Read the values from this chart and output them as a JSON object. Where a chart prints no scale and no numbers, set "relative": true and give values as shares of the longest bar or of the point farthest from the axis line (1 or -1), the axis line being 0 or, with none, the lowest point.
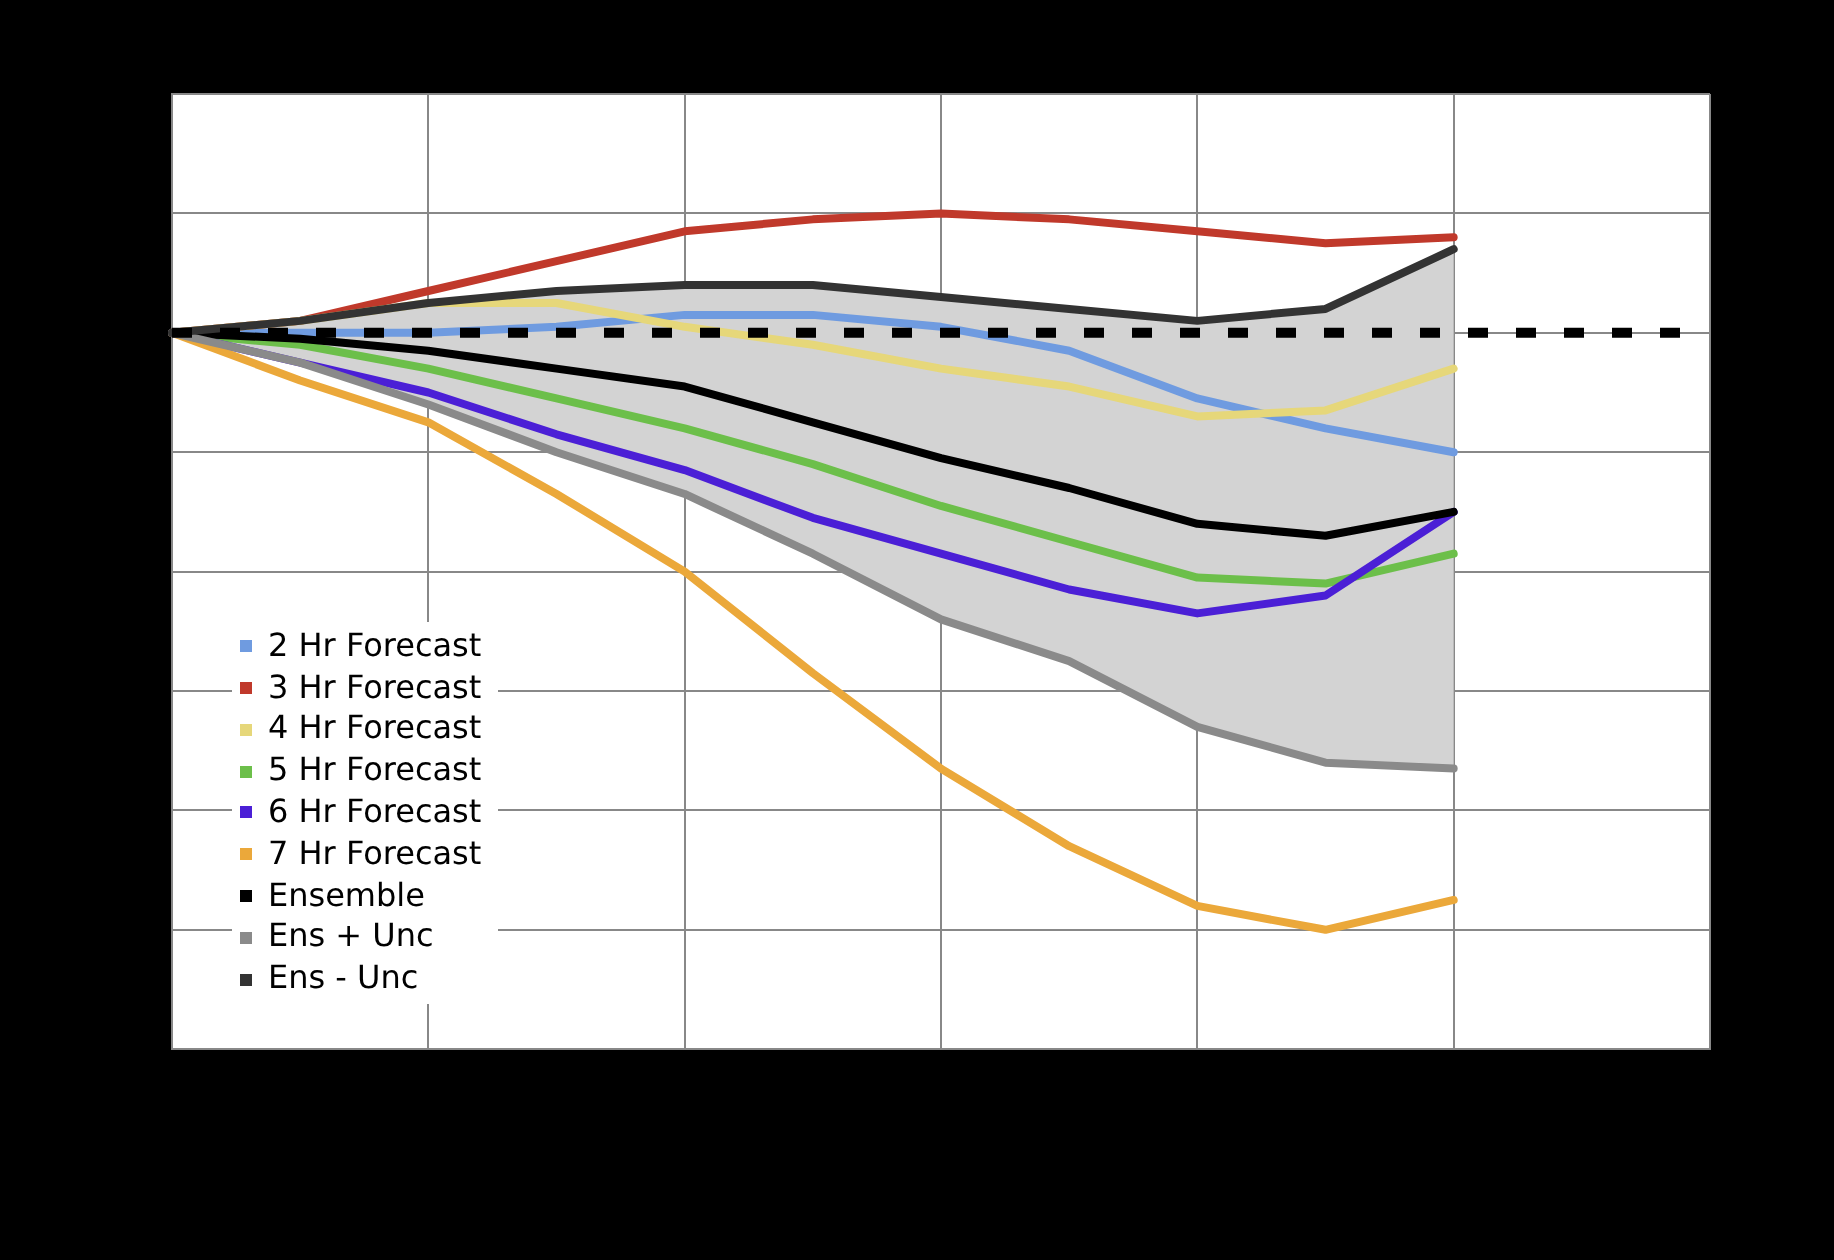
{
  "chart_data": {
    "type": "line",
    "relative": true,
    "categories": [
      null,
      null,
      null,
      null,
      null,
      null,
      null,
      null,
      null,
      null,
      null,
      null,
      null
    ],
    "series": [
      {
        "name": "2 Hr Forecast",
        "color": "#6f9be0",
        "values": [
          0,
          0,
          0,
          0.01,
          0.03,
          0.03,
          0.01,
          -0.03,
          -0.11,
          -0.16,
          -0.2,
          null,
          null
        ]
      },
      {
        "name": "3 Hr Forecast",
        "color": "#c0392b",
        "values": [
          0,
          0.02,
          0.07,
          0.12,
          0.17,
          0.19,
          0.2,
          0.19,
          0.17,
          0.15,
          0.16,
          null,
          null
        ]
      },
      {
        "name": "4 Hr Forecast",
        "color": "#e6d77a",
        "values": [
          0,
          0.02,
          0.05,
          0.05,
          0.01,
          -0.02,
          -0.06,
          -0.09,
          -0.14,
          -0.13,
          -0.06,
          null,
          null
        ]
      },
      {
        "name": "5 Hr Forecast",
        "color": "#6cbf4a",
        "values": [
          0,
          -0.02,
          -0.06,
          -0.11,
          -0.16,
          -0.22,
          -0.29,
          -0.35,
          -0.41,
          -0.42,
          -0.37,
          null,
          null
        ]
      },
      {
        "name": "6 Hr Forecast",
        "color": "#4b1fd6",
        "values": [
          0,
          -0.05,
          -0.1,
          -0.17,
          -0.23,
          -0.31,
          -0.37,
          -0.43,
          -0.47,
          -0.44,
          -0.3,
          null,
          null
        ]
      },
      {
        "name": "7 Hr Forecast",
        "color": "#eba83a",
        "values": [
          0,
          -0.08,
          -0.15,
          -0.27,
          -0.4,
          -0.57,
          -0.73,
          -0.86,
          -0.96,
          -1,
          -0.95,
          null,
          null
        ]
      },
      {
        "name": "Ensemble",
        "color": "#000000",
        "values": [
          0,
          -0.01,
          -0.03,
          -0.06,
          -0.09,
          -0.15,
          -0.21,
          -0.26,
          -0.32,
          -0.34,
          -0.3,
          null,
          null
        ],
        "lower": [
          0,
          -0.05,
          -0.12,
          -0.2,
          -0.27,
          -0.37,
          -0.48,
          -0.55,
          -0.66,
          -0.72,
          -0.73,
          null,
          null
        ],
        "upper": [
          0,
          0.02,
          0.05,
          0.07,
          0.08,
          0.08,
          0.06,
          0.04,
          0.02,
          0.04,
          0.14,
          null,
          null
        ]
      },
      {
        "name": "Ens + Unc",
        "color": "#8a8a8a",
        "values": [
          0,
          -0.05,
          -0.12,
          -0.2,
          -0.27,
          -0.37,
          -0.48,
          -0.55,
          -0.66,
          -0.72,
          -0.73,
          null,
          null
        ]
      },
      {
        "name": "Ens - Unc",
        "color": "#333333",
        "values": [
          0,
          0.02,
          0.05,
          0.07,
          0.08,
          0.08,
          0.06,
          0.04,
          0.02,
          0.04,
          0.14,
          null,
          null
        ]
      }
    ],
    "ref_lines": [
      {
        "axis": "y",
        "value": 0,
        "color": "#000000",
        "line_style": "dashed"
      }
    ],
    "grid": true,
    "legend": "bottom left",
    "marker": "none",
    "line_style": "solid"
  }
}
